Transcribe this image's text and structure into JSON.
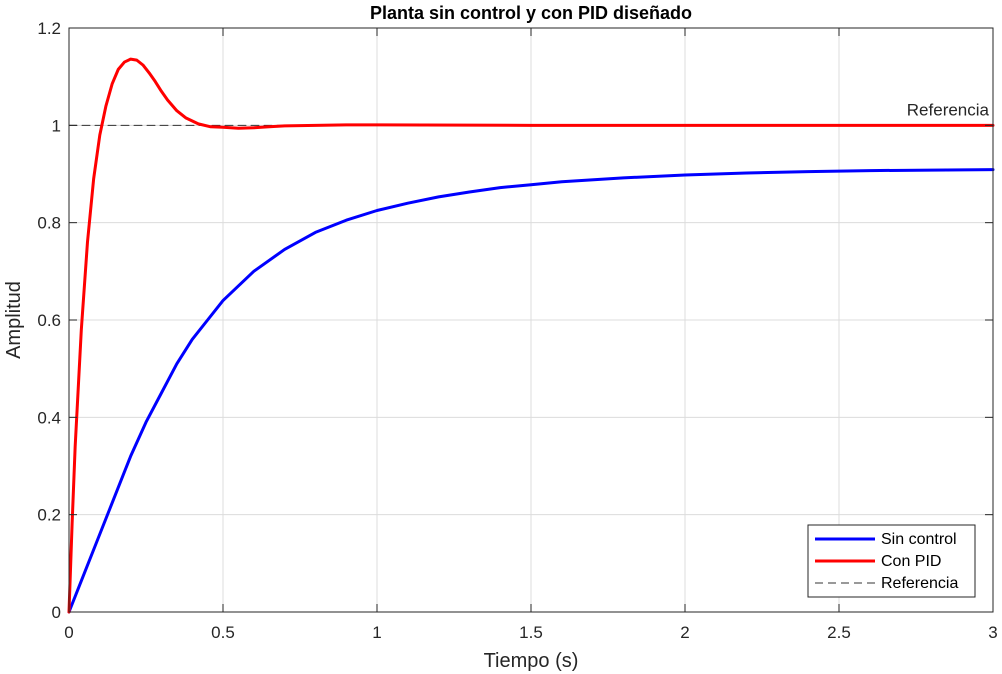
{
  "chart_data": {
    "type": "line",
    "title": "Planta sin control y con PID diseñado",
    "xlabel": "Tiempo (s)",
    "ylabel": "Amplitud",
    "xlim": [
      0,
      3
    ],
    "ylim": [
      0,
      1.2
    ],
    "xticks": [
      0,
      0.5,
      1,
      1.5,
      2,
      2.5,
      3
    ],
    "xtick_labels": [
      "0",
      "0.5",
      "1",
      "1.5",
      "2",
      "2.5",
      "3"
    ],
    "yticks": [
      0,
      0.2,
      0.4,
      0.6,
      0.8,
      1,
      1.2
    ],
    "ytick_labels": [
      "0",
      "0.2",
      "0.4",
      "0.6",
      "0.8",
      "1",
      "1.2"
    ],
    "grid": true,
    "legend_position": "bottom-right",
    "annotation": {
      "text": "Referencia",
      "x": 3,
      "y": 1
    },
    "series": [
      {
        "name": "Sin control",
        "color": "#0000ff",
        "style": "solid",
        "x": [
          0,
          0.05,
          0.1,
          0.15,
          0.2,
          0.25,
          0.3,
          0.35,
          0.4,
          0.45,
          0.5,
          0.6,
          0.7,
          0.8,
          0.9,
          1.0,
          1.1,
          1.2,
          1.3,
          1.4,
          1.5,
          1.6,
          1.8,
          2.0,
          2.2,
          2.4,
          2.6,
          2.8,
          3.0
        ],
        "y": [
          0,
          0.08,
          0.16,
          0.24,
          0.32,
          0.39,
          0.45,
          0.51,
          0.56,
          0.6,
          0.64,
          0.7,
          0.745,
          0.78,
          0.805,
          0.825,
          0.84,
          0.853,
          0.863,
          0.872,
          0.878,
          0.884,
          0.892,
          0.898,
          0.902,
          0.905,
          0.907,
          0.908,
          0.909
        ]
      },
      {
        "name": "Con PID",
        "color": "#ff0000",
        "style": "solid",
        "x": [
          0,
          0.01,
          0.02,
          0.04,
          0.06,
          0.08,
          0.1,
          0.12,
          0.14,
          0.16,
          0.18,
          0.2,
          0.22,
          0.24,
          0.26,
          0.28,
          0.3,
          0.32,
          0.35,
          0.38,
          0.42,
          0.46,
          0.5,
          0.55,
          0.6,
          0.65,
          0.7,
          0.8,
          0.9,
          1.0,
          1.5,
          2.0,
          2.5,
          3.0
        ],
        "y": [
          0,
          0.18,
          0.34,
          0.58,
          0.76,
          0.89,
          0.98,
          1.04,
          1.085,
          1.115,
          1.13,
          1.136,
          1.134,
          1.124,
          1.108,
          1.09,
          1.07,
          1.052,
          1.03,
          1.015,
          1.003,
          0.997,
          0.996,
          0.994,
          0.995,
          0.997,
          0.999,
          1.0,
          1.001,
          1.001,
          1.0,
          1.0,
          1.0,
          1.0
        ]
      },
      {
        "name": "Referencia",
        "color": "#333333",
        "style": "dashed",
        "x": [
          0,
          3
        ],
        "y": [
          1,
          1
        ]
      }
    ]
  }
}
